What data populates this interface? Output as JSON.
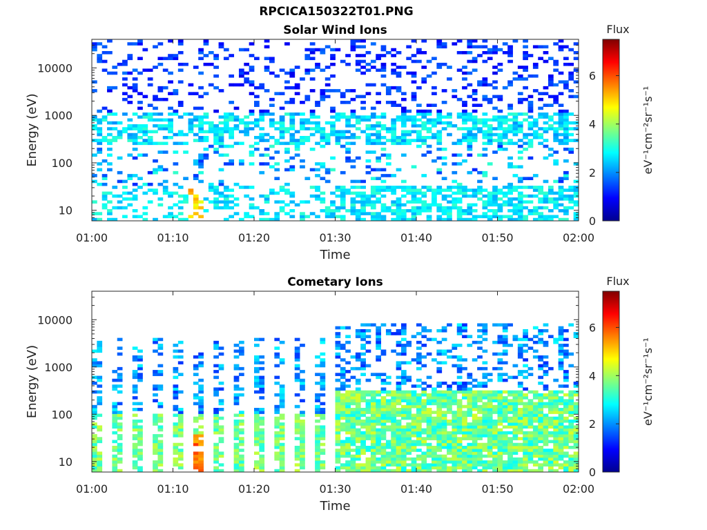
{
  "figure": {
    "title": "RPCICA150322T01.PNG"
  },
  "chart_data": [
    {
      "type": "heatmap",
      "title": "Solar Wind Ions",
      "xlabel": "Time",
      "ylabel": "Energy (eV)",
      "x_range": [
        "01:00",
        "02:00"
      ],
      "x_ticks": [
        "01:00",
        "01:10",
        "01:20",
        "01:30",
        "01:40",
        "01:50",
        "02:00"
      ],
      "y_scale": "log",
      "y_range": [
        6,
        40000
      ],
      "y_ticks": [
        10,
        100,
        1000,
        10000
      ],
      "y_tick_labels": [
        "10",
        "100",
        "1000",
        "10000"
      ],
      "colorbar": {
        "label": "Flux",
        "unit_label": "eV⁻¹cm⁻²sr⁻¹s⁻¹",
        "range": [
          0,
          7.5
        ],
        "ticks": [
          0,
          2,
          4,
          6
        ],
        "tick_labels": [
          "0",
          "2",
          "4",
          "6"
        ],
        "colormap": "jet"
      },
      "grid": false,
      "features": "Broad solar wind ion band near 300–800 eV with flux ~2–3; sparse low flux above 1 keV; low-energy population near 10–30 eV, strongest near 01:13 (flux ~5)"
    },
    {
      "type": "heatmap",
      "title": "Cometary Ions",
      "xlabel": "Time",
      "ylabel": "Energy (eV)",
      "x_range": [
        "01:00",
        "02:00"
      ],
      "x_ticks": [
        "01:00",
        "01:10",
        "01:20",
        "01:30",
        "01:40",
        "01:50",
        "02:00"
      ],
      "y_scale": "log",
      "y_range": [
        6,
        40000
      ],
      "y_ticks": [
        10,
        100,
        1000,
        10000
      ],
      "y_tick_labels": [
        "10",
        "100",
        "1000",
        "10000"
      ],
      "colorbar": {
        "label": "Flux",
        "unit_label": "eV⁻¹cm⁻²sr⁻¹s⁻¹",
        "range": [
          0,
          7.5
        ],
        "ticks": [
          0,
          2,
          4,
          6
        ],
        "tick_labels": [
          "0",
          "2",
          "4",
          "6"
        ],
        "colormap": "jet"
      },
      "grid": false,
      "features": "Periodic vertical bands of cometary ions from ~10 eV up to a few keV; flux 3–4.5 below 100 eV, peaking ~6 near 01:13 at ~20 eV; after 01:30 continuous coverage 10–300 eV"
    }
  ]
}
